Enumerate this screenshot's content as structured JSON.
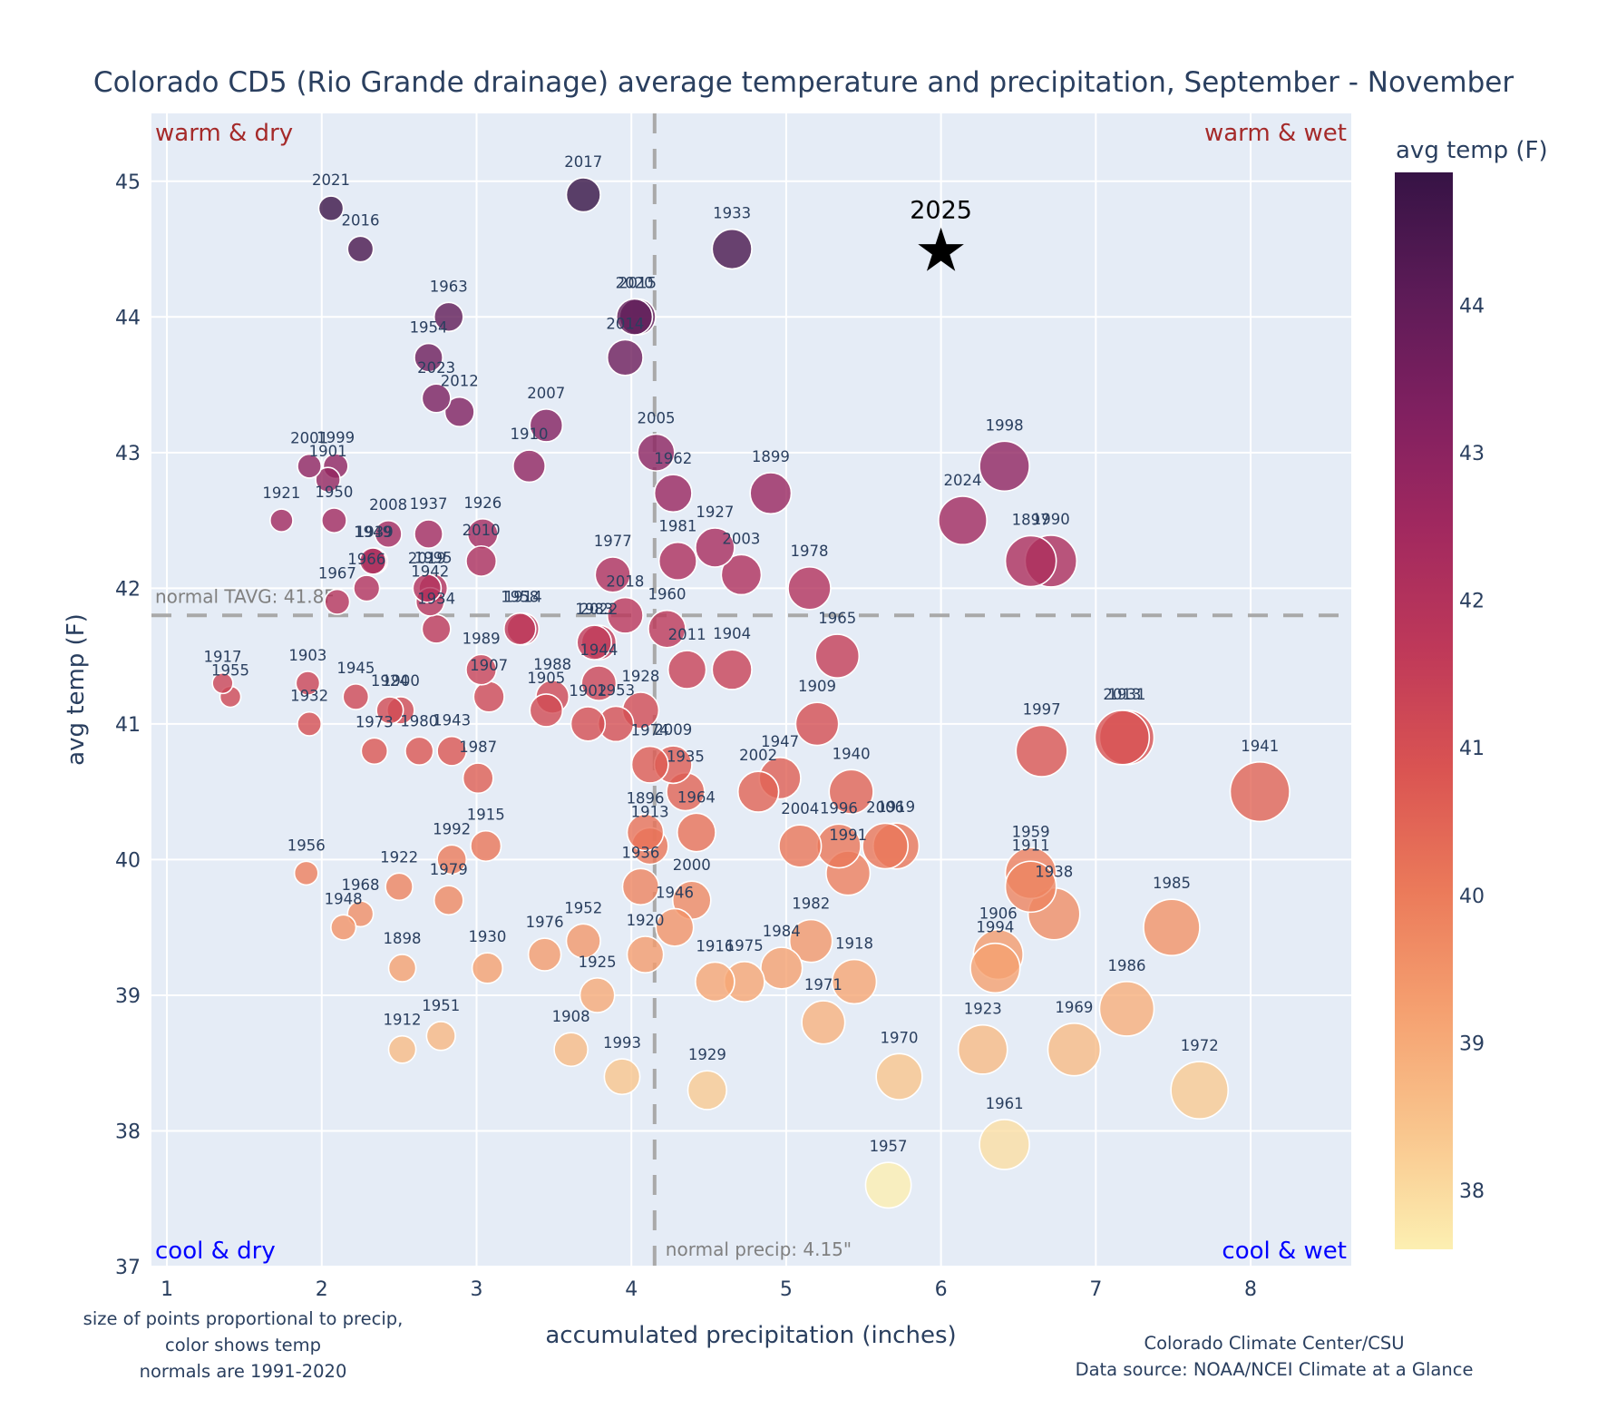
{
  "chart_data": {
    "type": "scatter",
    "title": "Colorado CD5 (Rio Grande drainage) average temperature and precipitation, September - November",
    "xlabel": "accumulated precipitation (inches)",
    "ylabel": "avg temp (F)",
    "xlim": [
      0.9,
      8.65
    ],
    "ylim": [
      37,
      45.5
    ],
    "x_ticks": [
      1,
      2,
      3,
      4,
      5,
      6,
      7,
      8
    ],
    "y_ticks": [
      37,
      38,
      39,
      40,
      41,
      42,
      43,
      44,
      45
    ],
    "grid": true,
    "size_encoding": "precipitation",
    "color_encoding": "avg temp",
    "colorbar": {
      "title": "avg temp (F)",
      "range": [
        37.6,
        44.9
      ],
      "ticks": [
        38,
        39,
        40,
        41,
        42,
        43,
        44
      ],
      "colorscale": [
        "#fcefb1",
        "#f9c58d",
        "#f5a070",
        "#eb7a5a",
        "#da5452",
        "#bf3959",
        "#a2295f",
        "#802060",
        "#5c1b57",
        "#361345"
      ]
    },
    "reference_lines": {
      "normal_temp": {
        "value": 41.8,
        "label": "normal TAVG: 41.8F"
      },
      "normal_precip": {
        "value": 4.15,
        "label": "normal precip: 4.15\""
      }
    },
    "quadrant_labels": {
      "top_left": "warm & dry",
      "top_right": "warm & wet",
      "bottom_left": "cool & dry",
      "bottom_right": "cool & wet"
    },
    "highlight": {
      "year": "2025",
      "x": 6.0,
      "y": 44.5,
      "marker": "star"
    },
    "notes": {
      "left": [
        "size of points proportional to precip,",
        "color shows temp",
        "normals are 1991-2020"
      ],
      "right": [
        "Colorado Climate Center/CSU",
        "Data source: NOAA/NCEI Climate at a Glance"
      ]
    },
    "points": [
      {
        "year": "2021",
        "x": 2.06,
        "y": 44.8
      },
      {
        "year": "2016",
        "x": 2.25,
        "y": 44.5
      },
      {
        "year": "2017",
        "x": 3.69,
        "y": 44.9
      },
      {
        "year": "1933",
        "x": 4.65,
        "y": 44.5
      },
      {
        "year": "1963",
        "x": 2.82,
        "y": 44.0
      },
      {
        "year": "2020",
        "x": 4.02,
        "y": 44.0
      },
      {
        "year": "2015",
        "x": 4.04,
        "y": 44.0
      },
      {
        "year": "1954",
        "x": 2.69,
        "y": 43.7
      },
      {
        "year": "2014",
        "x": 3.96,
        "y": 43.7
      },
      {
        "year": "2023",
        "x": 2.74,
        "y": 43.4
      },
      {
        "year": "2012",
        "x": 2.89,
        "y": 43.3
      },
      {
        "year": "2007",
        "x": 3.45,
        "y": 43.2
      },
      {
        "year": "1910",
        "x": 3.34,
        "y": 42.9
      },
      {
        "year": "2005",
        "x": 4.16,
        "y": 43.0
      },
      {
        "year": "2001",
        "x": 1.92,
        "y": 42.9
      },
      {
        "year": "1999",
        "x": 2.09,
        "y": 42.9
      },
      {
        "year": "1901",
        "x": 2.04,
        "y": 42.8
      },
      {
        "year": "1962",
        "x": 4.27,
        "y": 42.7
      },
      {
        "year": "1899",
        "x": 4.9,
        "y": 42.7
      },
      {
        "year": "1998",
        "x": 6.41,
        "y": 42.9
      },
      {
        "year": "2024",
        "x": 6.14,
        "y": 42.5
      },
      {
        "year": "1921",
        "x": 1.74,
        "y": 42.5
      },
      {
        "year": "1950",
        "x": 2.08,
        "y": 42.5
      },
      {
        "year": "2008",
        "x": 2.43,
        "y": 42.4
      },
      {
        "year": "1937",
        "x": 2.69,
        "y": 42.4
      },
      {
        "year": "1926",
        "x": 3.04,
        "y": 42.4
      },
      {
        "year": "1939",
        "x": 2.34,
        "y": 42.2
      },
      {
        "year": "2010",
        "x": 3.03,
        "y": 42.2
      },
      {
        "year": "1977",
        "x": 3.88,
        "y": 42.1
      },
      {
        "year": "1981",
        "x": 4.3,
        "y": 42.2
      },
      {
        "year": "1927",
        "x": 4.54,
        "y": 42.3
      },
      {
        "year": "2003",
        "x": 4.71,
        "y": 42.1
      },
      {
        "year": "1978",
        "x": 5.15,
        "y": 42.0
      },
      {
        "year": "1897",
        "x": 6.58,
        "y": 42.2
      },
      {
        "year": "1990",
        "x": 6.71,
        "y": 42.2
      },
      {
        "year": "1949",
        "x": 2.33,
        "y": 42.2
      },
      {
        "year": "1966",
        "x": 2.29,
        "y": 42.0
      },
      {
        "year": "2019",
        "x": 2.68,
        "y": 42.0
      },
      {
        "year": "1995",
        "x": 2.72,
        "y": 42.0
      },
      {
        "year": "1942",
        "x": 2.7,
        "y": 41.9
      },
      {
        "year": "1967",
        "x": 2.1,
        "y": 41.9
      },
      {
        "year": "1934",
        "x": 2.74,
        "y": 41.7
      },
      {
        "year": "2018",
        "x": 3.96,
        "y": 41.8
      },
      {
        "year": "1958",
        "x": 3.28,
        "y": 41.7
      },
      {
        "year": "1914",
        "x": 3.3,
        "y": 41.7
      },
      {
        "year": "2022",
        "x": 3.79,
        "y": 41.6
      },
      {
        "year": "1960",
        "x": 4.23,
        "y": 41.7
      },
      {
        "year": "1965",
        "x": 5.33,
        "y": 41.5
      },
      {
        "year": "2011",
        "x": 4.36,
        "y": 41.4
      },
      {
        "year": "1904",
        "x": 4.65,
        "y": 41.4
      },
      {
        "year": "1983",
        "x": 3.76,
        "y": 41.6
      },
      {
        "year": "1944",
        "x": 3.79,
        "y": 41.3
      },
      {
        "year": "1989",
        "x": 3.03,
        "y": 41.4
      },
      {
        "year": "1907",
        "x": 3.08,
        "y": 41.2
      },
      {
        "year": "1988",
        "x": 3.49,
        "y": 41.2
      },
      {
        "year": "1905",
        "x": 3.45,
        "y": 41.1
      },
      {
        "year": "1902",
        "x": 3.72,
        "y": 41.0
      },
      {
        "year": "1953",
        "x": 3.9,
        "y": 41.0
      },
      {
        "year": "1928",
        "x": 4.06,
        "y": 41.1
      },
      {
        "year": "1909",
        "x": 5.2,
        "y": 41.0
      },
      {
        "year": "1917",
        "x": 1.36,
        "y": 41.3
      },
      {
        "year": "1955",
        "x": 1.41,
        "y": 41.2
      },
      {
        "year": "1903",
        "x": 1.91,
        "y": 41.3
      },
      {
        "year": "1932",
        "x": 1.92,
        "y": 41.0
      },
      {
        "year": "1945",
        "x": 2.22,
        "y": 41.2
      },
      {
        "year": "1924",
        "x": 2.44,
        "y": 41.1
      },
      {
        "year": "1900",
        "x": 2.51,
        "y": 41.1
      },
      {
        "year": "1973",
        "x": 2.34,
        "y": 40.8
      },
      {
        "year": "1980",
        "x": 2.63,
        "y": 40.8
      },
      {
        "year": "1943",
        "x": 2.84,
        "y": 40.8
      },
      {
        "year": "1987",
        "x": 3.01,
        "y": 40.6
      },
      {
        "year": "1997",
        "x": 6.65,
        "y": 40.8
      },
      {
        "year": "2013",
        "x": 7.17,
        "y": 40.9
      },
      {
        "year": "1931",
        "x": 7.2,
        "y": 40.9
      },
      {
        "year": "1941",
        "x": 8.06,
        "y": 40.5
      },
      {
        "year": "1974",
        "x": 4.12,
        "y": 40.7
      },
      {
        "year": "2009",
        "x": 4.27,
        "y": 40.7
      },
      {
        "year": "1935",
        "x": 4.35,
        "y": 40.5
      },
      {
        "year": "1947",
        "x": 4.96,
        "y": 40.6
      },
      {
        "year": "2002",
        "x": 4.82,
        "y": 40.5
      },
      {
        "year": "1940",
        "x": 5.42,
        "y": 40.5
      },
      {
        "year": "1964",
        "x": 4.42,
        "y": 40.2
      },
      {
        "year": "1896",
        "x": 4.09,
        "y": 40.2
      },
      {
        "year": "1913",
        "x": 4.12,
        "y": 40.1
      },
      {
        "year": "2004",
        "x": 5.09,
        "y": 40.1
      },
      {
        "year": "1996",
        "x": 5.34,
        "y": 40.1
      },
      {
        "year": "2006",
        "x": 5.64,
        "y": 40.1
      },
      {
        "year": "1919",
        "x": 5.71,
        "y": 40.1
      },
      {
        "year": "1991",
        "x": 5.4,
        "y": 39.9
      },
      {
        "year": "1959",
        "x": 6.58,
        "y": 39.9
      },
      {
        "year": "1911",
        "x": 6.58,
        "y": 39.8
      },
      {
        "year": "1938",
        "x": 6.73,
        "y": 39.6
      },
      {
        "year": "1936",
        "x": 4.06,
        "y": 39.8
      },
      {
        "year": "2000",
        "x": 4.39,
        "y": 39.7
      },
      {
        "year": "1946",
        "x": 4.28,
        "y": 39.5
      },
      {
        "year": "1920",
        "x": 4.09,
        "y": 39.3
      },
      {
        "year": "1956",
        "x": 1.9,
        "y": 39.9
      },
      {
        "year": "1922",
        "x": 2.5,
        "y": 39.8
      },
      {
        "year": "1992",
        "x": 2.84,
        "y": 40.0
      },
      {
        "year": "1915",
        "x": 3.06,
        "y": 40.1
      },
      {
        "year": "1979",
        "x": 2.82,
        "y": 39.7
      },
      {
        "year": "1968",
        "x": 2.25,
        "y": 39.6
      },
      {
        "year": "1948",
        "x": 2.14,
        "y": 39.5
      },
      {
        "year": "1898",
        "x": 2.52,
        "y": 39.2
      },
      {
        "year": "1930",
        "x": 3.07,
        "y": 39.2
      },
      {
        "year": "1976",
        "x": 3.44,
        "y": 39.3
      },
      {
        "year": "1952",
        "x": 3.69,
        "y": 39.4
      },
      {
        "year": "1925",
        "x": 3.78,
        "y": 39.0
      },
      {
        "year": "1916",
        "x": 4.54,
        "y": 39.1
      },
      {
        "year": "1975",
        "x": 4.73,
        "y": 39.1
      },
      {
        "year": "1984",
        "x": 4.97,
        "y": 39.2
      },
      {
        "year": "1982",
        "x": 5.16,
        "y": 39.4
      },
      {
        "year": "1918",
        "x": 5.44,
        "y": 39.1
      },
      {
        "year": "1971",
        "x": 5.24,
        "y": 38.8
      },
      {
        "year": "1906",
        "x": 6.37,
        "y": 39.3
      },
      {
        "year": "1994",
        "x": 6.35,
        "y": 39.2
      },
      {
        "year": "1985",
        "x": 7.49,
        "y": 39.5
      },
      {
        "year": "1986",
        "x": 7.2,
        "y": 38.9
      },
      {
        "year": "1923",
        "x": 6.27,
        "y": 38.6
      },
      {
        "year": "1969",
        "x": 6.86,
        "y": 38.6
      },
      {
        "year": "1972",
        "x": 7.67,
        "y": 38.3
      },
      {
        "year": "1970",
        "x": 5.73,
        "y": 38.4
      },
      {
        "year": "1961",
        "x": 6.41,
        "y": 37.9
      },
      {
        "year": "1957",
        "x": 5.66,
        "y": 37.6
      },
      {
        "year": "1912",
        "x": 2.52,
        "y": 38.6
      },
      {
        "year": "1951",
        "x": 2.77,
        "y": 38.7
      },
      {
        "year": "1908",
        "x": 3.61,
        "y": 38.6
      },
      {
        "year": "1993",
        "x": 3.94,
        "y": 38.4
      },
      {
        "year": "1929",
        "x": 4.49,
        "y": 38.3
      }
    ]
  }
}
